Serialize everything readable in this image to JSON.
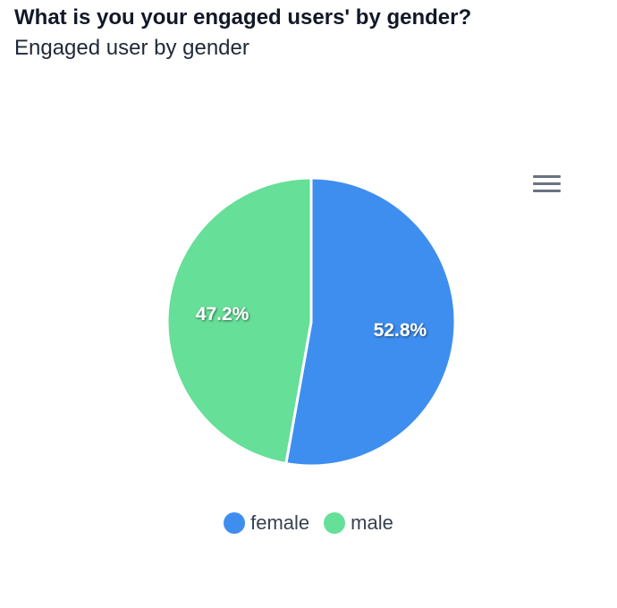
{
  "header": {
    "title": "What is you your engaged users' by gender?",
    "subtitle": "Engaged user by gender"
  },
  "menu": {
    "icon": "hamburger-menu-icon"
  },
  "chart_data": {
    "type": "pie",
    "categories": [
      "female",
      "male"
    ],
    "values": [
      52.8,
      47.2
    ],
    "data_labels": [
      "52.8%",
      "47.2%"
    ],
    "colors": [
      "#3e8ef0",
      "#66df98"
    ],
    "legend_position": "bottom-center",
    "start_angle": "top, clockwise"
  }
}
